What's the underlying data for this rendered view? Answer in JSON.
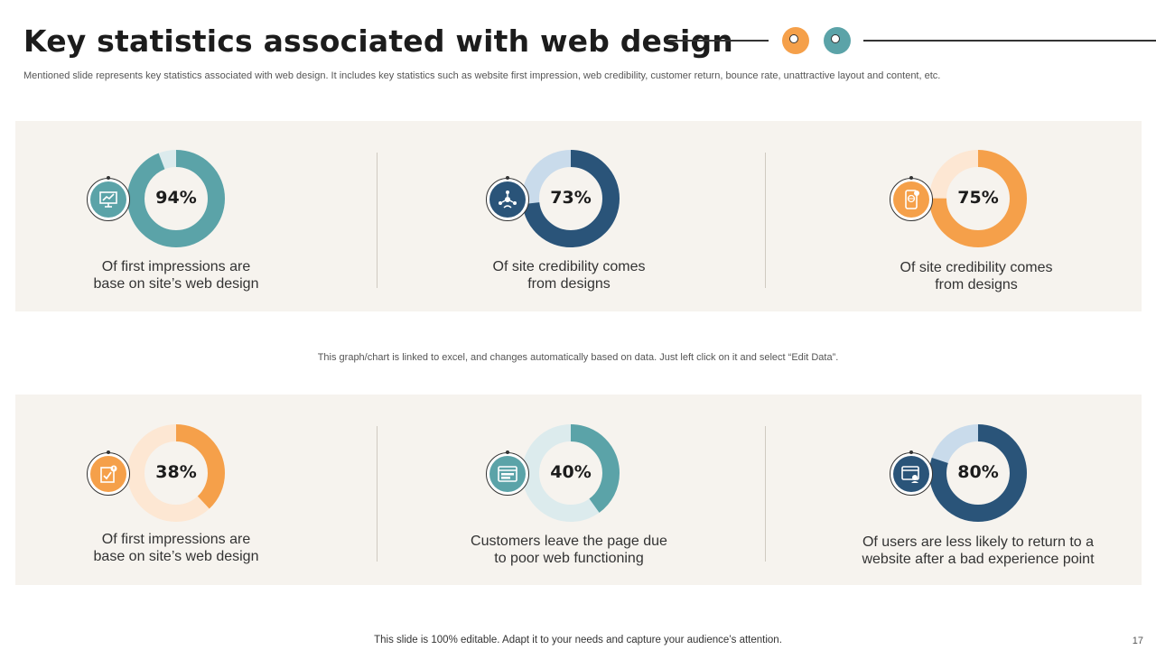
{
  "title": "Key statistics associated with web design",
  "subtitle": "Mentioned slide represents key statistics associated with web design. It includes key statistics such as website first impression, web credibility, customer return, bounce rate, unattractive layout and content, etc.",
  "colors": {
    "teal": "#5ba3a8",
    "navy": "#2a5479",
    "orange": "#f5a04a",
    "panel": "#f6f3ee"
  },
  "stats": [
    {
      "value": "94%",
      "percent": 94,
      "caption": [
        "Of first impressions are",
        "base on site’s web design"
      ],
      "color": "#5ba3a8",
      "track": "#dcebed",
      "icon": "presentation-board-icon"
    },
    {
      "value": "73%",
      "percent": 73,
      "caption": [
        "Of site credibility comes",
        "from designs"
      ],
      "color": "#2a5479",
      "track": "#c9dbeb",
      "icon": "network-people-icon"
    },
    {
      "value": "75%",
      "percent": 75,
      "caption": [
        "Of site credibility comes",
        "from designs"
      ],
      "color": "#f5a04a",
      "track": "#fde7d3",
      "icon": "mobile-web-icon"
    },
    {
      "value": "38%",
      "percent": 38,
      "caption": [
        "Of first impressions are",
        "base on site’s web design"
      ],
      "color": "#f5a04a",
      "track": "#fde7d3",
      "icon": "checklist-alert-icon"
    },
    {
      "value": "40%",
      "percent": 40,
      "caption": [
        "Customers leave the page due",
        "to poor web functioning"
      ],
      "color": "#5ba3a8",
      "track": "#dcebed",
      "icon": "browser-window-icon"
    },
    {
      "value": "80%",
      "percent": 80,
      "caption": [
        "Of users are less likely to return to a",
        "website after a bad experience point"
      ],
      "color": "#2a5479",
      "track": "#c9dbeb",
      "icon": "browser-user-icon"
    }
  ],
  "note": "This graph/chart is linked to excel,  and changes automatically based on data. Just left click on it and select “Edit Data”.",
  "footer": "This slide is 100% editable. Adapt it to your needs and capture your audience’s attention.",
  "page_number": "17"
}
